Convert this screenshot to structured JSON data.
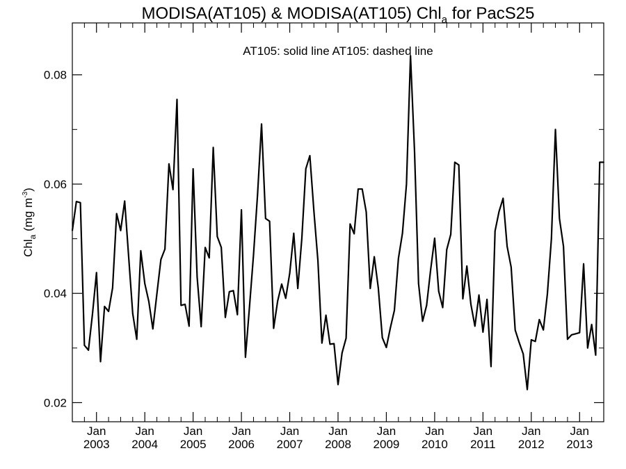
{
  "chart_data": {
    "type": "line",
    "title": {
      "prefix": "MODISA(AT105) & MODISA(AT105)  Chl",
      "subscript": "a",
      "suffix": " for PacS25"
    },
    "annotation": "AT105: solid line   AT105: dashed line",
    "ylabel": {
      "main": "Chl",
      "subscript": "a",
      "units": " (mg m",
      "units_sup": "-3",
      "units_close": ")"
    },
    "xlim": [
      "2002-07-01",
      "2013-07-01"
    ],
    "ylim": [
      0.0165,
      0.0895
    ],
    "yticks": [
      0.02,
      0.04,
      0.06,
      0.08
    ],
    "ytick_labels": [
      "0.02",
      "0.04",
      "0.06",
      "0.08"
    ],
    "xticks": [
      {
        "date": "2003-01-01",
        "month": "Jan",
        "year": "2003"
      },
      {
        "date": "2004-01-01",
        "month": "Jan",
        "year": "2004"
      },
      {
        "date": "2005-01-01",
        "month": "Jan",
        "year": "2005"
      },
      {
        "date": "2006-01-01",
        "month": "Jan",
        "year": "2006"
      },
      {
        "date": "2007-01-01",
        "month": "Jan",
        "year": "2007"
      },
      {
        "date": "2008-01-01",
        "month": "Jan",
        "year": "2008"
      },
      {
        "date": "2009-01-01",
        "month": "Jan",
        "year": "2009"
      },
      {
        "date": "2010-01-01",
        "month": "Jan",
        "year": "2010"
      },
      {
        "date": "2011-01-01",
        "month": "Jan",
        "year": "2011"
      },
      {
        "date": "2012-01-01",
        "month": "Jan",
        "year": "2012"
      },
      {
        "date": "2013-01-01",
        "month": "Jan",
        "year": "2013"
      }
    ],
    "grid": false,
    "series": [
      {
        "style": "solid",
        "color": "#000000",
        "x": [
          "2002-07",
          "2002-08",
          "2002-09",
          "2002-10",
          "2002-11",
          "2002-12",
          "2003-01",
          "2003-02",
          "2003-03",
          "2003-04",
          "2003-05",
          "2003-06",
          "2003-07",
          "2003-08",
          "2003-09",
          "2003-10",
          "2003-11",
          "2003-12",
          "2004-01",
          "2004-02",
          "2004-03",
          "2004-04",
          "2004-05",
          "2004-06",
          "2004-07",
          "2004-08",
          "2004-09",
          "2004-10",
          "2004-11",
          "2004-12",
          "2005-01",
          "2005-02",
          "2005-03",
          "2005-04",
          "2005-05",
          "2005-06",
          "2005-07",
          "2005-08",
          "2005-09",
          "2005-10",
          "2005-11",
          "2005-12",
          "2006-01",
          "2006-02",
          "2006-03",
          "2006-04",
          "2006-05",
          "2006-06",
          "2006-07",
          "2006-08",
          "2006-09",
          "2006-10",
          "2006-11",
          "2006-12",
          "2007-01",
          "2007-02",
          "2007-03",
          "2007-04",
          "2007-05",
          "2007-06",
          "2007-07",
          "2007-08",
          "2007-09",
          "2007-10",
          "2007-11",
          "2007-12",
          "2008-01",
          "2008-02",
          "2008-03",
          "2008-04",
          "2008-05",
          "2008-06",
          "2008-07",
          "2008-08",
          "2008-09",
          "2008-10",
          "2008-11",
          "2008-12",
          "2009-01",
          "2009-02",
          "2009-03",
          "2009-04",
          "2009-05",
          "2009-06",
          "2009-07",
          "2009-08",
          "2009-09",
          "2009-10",
          "2009-11",
          "2009-12",
          "2010-01",
          "2010-02",
          "2010-03",
          "2010-04",
          "2010-05",
          "2010-06",
          "2010-07",
          "2010-08",
          "2010-09",
          "2010-10",
          "2010-11",
          "2010-12",
          "2011-01",
          "2011-02",
          "2011-03",
          "2011-04",
          "2011-05",
          "2011-06",
          "2011-07",
          "2011-08",
          "2011-09",
          "2011-10",
          "2011-11",
          "2011-12",
          "2012-01",
          "2012-02",
          "2012-03",
          "2012-04",
          "2012-05",
          "2012-06",
          "2012-07",
          "2012-08",
          "2012-09",
          "2012-10",
          "2012-11",
          "2012-12",
          "2013-01",
          "2013-02",
          "2013-03",
          "2013-04",
          "2013-05",
          "2013-06",
          "2013-07"
        ],
        "y": [
          0.0515,
          0.0568,
          0.0566,
          0.0305,
          0.0296,
          0.0362,
          0.0438,
          0.0275,
          0.0376,
          0.0367,
          0.041,
          0.0546,
          0.0515,
          0.0569,
          0.0466,
          0.0363,
          0.0316,
          0.0478,
          0.0418,
          0.0385,
          0.0335,
          0.0399,
          0.0462,
          0.0481,
          0.0637,
          0.059,
          0.0755,
          0.0378,
          0.038,
          0.034,
          0.0628,
          0.043,
          0.0339,
          0.0484,
          0.0465,
          0.0667,
          0.0504,
          0.0484,
          0.0356,
          0.0403,
          0.0405,
          0.0361,
          0.0553,
          0.0283,
          0.0375,
          0.047,
          0.058,
          0.071,
          0.0537,
          0.0532,
          0.0336,
          0.0386,
          0.0417,
          0.0391,
          0.0437,
          0.051,
          0.0409,
          0.05,
          0.0628,
          0.0652,
          0.0551,
          0.046,
          0.0309,
          0.036,
          0.0307,
          0.0308,
          0.0233,
          0.0291,
          0.0318,
          0.0527,
          0.0509,
          0.0591,
          0.0591,
          0.0549,
          0.0409,
          0.0467,
          0.041,
          0.0319,
          0.0301,
          0.0337,
          0.0369,
          0.0464,
          0.051,
          0.06,
          0.0835,
          0.066,
          0.0418,
          0.0349,
          0.0378,
          0.0443,
          0.0501,
          0.0404,
          0.0374,
          0.048,
          0.0508,
          0.064,
          0.0635,
          0.039,
          0.045,
          0.038,
          0.034,
          0.0397,
          0.0329,
          0.0389,
          0.0266,
          0.0514,
          0.055,
          0.0574,
          0.0486,
          0.0448,
          0.0333,
          0.031,
          0.0289,
          0.0224,
          0.0315,
          0.0312,
          0.0352,
          0.0333,
          0.0399,
          0.05,
          0.07,
          0.0537,
          0.0486,
          0.0316,
          0.0324,
          0.0326,
          0.0328,
          0.0454,
          0.03,
          0.0343,
          0.0287,
          0.064,
          0.064
        ]
      }
    ]
  }
}
